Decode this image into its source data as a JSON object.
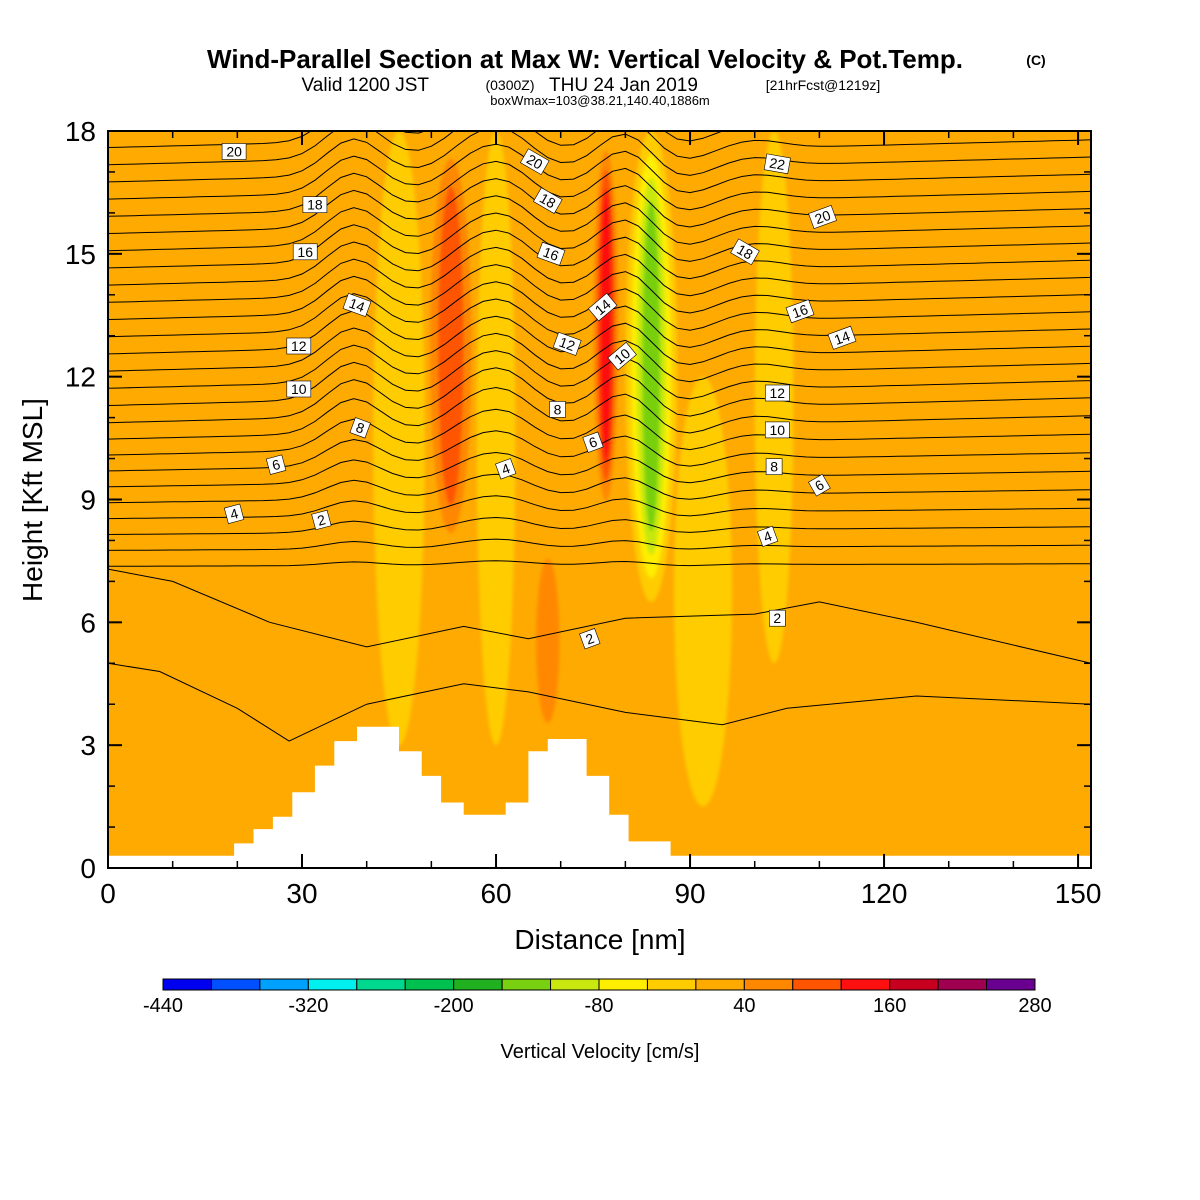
{
  "chart_data": {
    "type": "heatmap",
    "title_main": "Wind-Parallel Section at Max W: Vertical Velocity & Pot.Temp.",
    "title_mark": "(C)",
    "subtitle_a": "Valid 1200 JST",
    "subtitle_b": "(0300Z)",
    "subtitle_c": "THU 24 Jan 2019",
    "subtitle_d": "[21hrFcst@1219z]",
    "subtitle_line3": "boxWmax=103@38.21,140.40,1886m",
    "xlabel": "Distance [nm]",
    "ylabel": "Height [Kft MSL]",
    "xlim": [
      0,
      152
    ],
    "ylim": [
      0,
      18
    ],
    "x_ticks": [
      0,
      30,
      60,
      90,
      120,
      150
    ],
    "y_ticks": [
      0,
      3,
      6,
      9,
      12,
      15,
      18
    ],
    "colorbar": {
      "label": "Vertical Velocity [cm/s]",
      "tick_labels": [
        "-440",
        "-320",
        "-200",
        "-80",
        "40",
        "160",
        "280"
      ],
      "tick_values": [
        -440,
        -320,
        -200,
        -80,
        40,
        160,
        280
      ],
      "levels": [
        -440,
        -400,
        -360,
        -320,
        -280,
        -240,
        -200,
        -160,
        -120,
        -80,
        -40,
        0,
        40,
        80,
        120,
        160,
        200,
        240,
        280
      ],
      "colors": [
        "#0000f0",
        "#0050ff",
        "#00a0ff",
        "#00f0f0",
        "#00d890",
        "#00c050",
        "#20b020",
        "#78d010",
        "#c8e810",
        "#ffee00",
        "#ffcc00",
        "#ffaa00",
        "#ff8800",
        "#ff5500",
        "#ff1010",
        "#c80020",
        "#a00050",
        "#6a0090"
      ]
    },
    "background_level_color": "#ffaa00",
    "velocity_features": [
      {
        "x": 53,
        "y_bottom": 7.5,
        "y_top": 18,
        "width": 9,
        "value": 150
      },
      {
        "x": 77,
        "y_bottom": 8.5,
        "y_top": 18,
        "width": 5,
        "value": 160
      },
      {
        "x": 84,
        "y_bottom": 6.5,
        "y_top": 18,
        "width": 8,
        "value": -170
      },
      {
        "x": 68,
        "y_bottom": 3.1,
        "y_top": 8,
        "width": 6,
        "value": 90
      },
      {
        "x": 35,
        "y_bottom": 2.5,
        "y_top": 7.5,
        "width": 7,
        "value": 70
      },
      {
        "x": 112,
        "y_bottom": 7,
        "y_top": 16,
        "width": 9,
        "value": 65
      },
      {
        "x": 45,
        "y_bottom": 3,
        "y_top": 18,
        "width": 8,
        "value": -60
      },
      {
        "x": 60,
        "y_bottom": 3,
        "y_top": 18,
        "width": 6,
        "value": -60
      },
      {
        "x": 92,
        "y_bottom": 1.5,
        "y_top": 12,
        "width": 9,
        "value": -40
      },
      {
        "x": 103,
        "y_bottom": 5,
        "y_top": 18,
        "width": 6,
        "value": -40
      }
    ],
    "terrain": [
      [
        0,
        0.3
      ],
      [
        19.5,
        0.3
      ],
      [
        19.5,
        0.6
      ],
      [
        22.5,
        0.6
      ],
      [
        22.5,
        0.95
      ],
      [
        25.5,
        0.95
      ],
      [
        25.5,
        1.25
      ],
      [
        28.5,
        1.25
      ],
      [
        28.5,
        1.85
      ],
      [
        32,
        1.85
      ],
      [
        32,
        2.5
      ],
      [
        35,
        2.5
      ],
      [
        35,
        3.1
      ],
      [
        38.5,
        3.1
      ],
      [
        38.5,
        3.45
      ],
      [
        45,
        3.45
      ],
      [
        45,
        2.85
      ],
      [
        48.5,
        2.85
      ],
      [
        48.5,
        2.25
      ],
      [
        51.5,
        2.25
      ],
      [
        51.5,
        1.6
      ],
      [
        55,
        1.6
      ],
      [
        55,
        1.3
      ],
      [
        61.5,
        1.3
      ],
      [
        61.5,
        1.6
      ],
      [
        65,
        1.6
      ],
      [
        65,
        2.85
      ],
      [
        68,
        2.85
      ],
      [
        68,
        3.15
      ],
      [
        74,
        3.15
      ],
      [
        74,
        2.25
      ],
      [
        77.5,
        2.25
      ],
      [
        77.5,
        1.3
      ],
      [
        80.5,
        1.3
      ],
      [
        80.5,
        0.65
      ],
      [
        87,
        0.65
      ],
      [
        87,
        0.3
      ],
      [
        152,
        0.3
      ]
    ],
    "theta_contour_labels": [
      {
        "text": "20",
        "x": 19.5,
        "y": 17.5,
        "angle": 0
      },
      {
        "text": "18",
        "x": 32,
        "y": 16.2,
        "angle": 0
      },
      {
        "text": "16",
        "x": 30.5,
        "y": 15.05,
        "angle": 0
      },
      {
        "text": "14",
        "x": 38.5,
        "y": 13.75,
        "angle": 20
      },
      {
        "text": "12",
        "x": 29.5,
        "y": 12.75,
        "angle": 0
      },
      {
        "text": "10",
        "x": 29.5,
        "y": 11.7,
        "angle": 0
      },
      {
        "text": "8",
        "x": 39,
        "y": 10.75,
        "angle": 20
      },
      {
        "text": "6",
        "x": 26,
        "y": 9.85,
        "angle": -15
      },
      {
        "text": "4",
        "x": 19.5,
        "y": 8.65,
        "angle": -15
      },
      {
        "text": "2",
        "x": 33,
        "y": 8.5,
        "angle": -15
      },
      {
        "text": "20",
        "x": 66,
        "y": 17.25,
        "angle": 30
      },
      {
        "text": "18",
        "x": 68,
        "y": 16.3,
        "angle": 30
      },
      {
        "text": "16",
        "x": 68.5,
        "y": 15.0,
        "angle": 20
      },
      {
        "text": "14",
        "x": 76.5,
        "y": 13.7,
        "angle": -40
      },
      {
        "text": "12",
        "x": 71,
        "y": 12.8,
        "angle": 20
      },
      {
        "text": "10",
        "x": 79.5,
        "y": 12.5,
        "angle": -40
      },
      {
        "text": "8",
        "x": 69.5,
        "y": 11.2,
        "angle": 0
      },
      {
        "text": "6",
        "x": 75,
        "y": 10.4,
        "angle": -20
      },
      {
        "text": "4",
        "x": 61.5,
        "y": 9.75,
        "angle": -20
      },
      {
        "text": "2",
        "x": 74.5,
        "y": 5.6,
        "angle": -20
      },
      {
        "text": "22",
        "x": 103.5,
        "y": 17.2,
        "angle": 10
      },
      {
        "text": "20",
        "x": 110.5,
        "y": 15.9,
        "angle": -20
      },
      {
        "text": "18",
        "x": 98.5,
        "y": 15.05,
        "angle": 30
      },
      {
        "text": "16",
        "x": 107,
        "y": 13.6,
        "angle": -20
      },
      {
        "text": "14",
        "x": 113.5,
        "y": 12.95,
        "angle": -20
      },
      {
        "text": "12",
        "x": 103.5,
        "y": 11.6,
        "angle": 0
      },
      {
        "text": "10",
        "x": 103.5,
        "y": 10.7,
        "angle": 0
      },
      {
        "text": "8",
        "x": 103,
        "y": 9.8,
        "angle": 0
      },
      {
        "text": "6",
        "x": 110,
        "y": 9.35,
        "angle": -30
      },
      {
        "text": "4",
        "x": 102,
        "y": 8.1,
        "angle": -20
      },
      {
        "text": "2",
        "x": 103.5,
        "y": 6.1,
        "angle": 0
      }
    ]
  }
}
